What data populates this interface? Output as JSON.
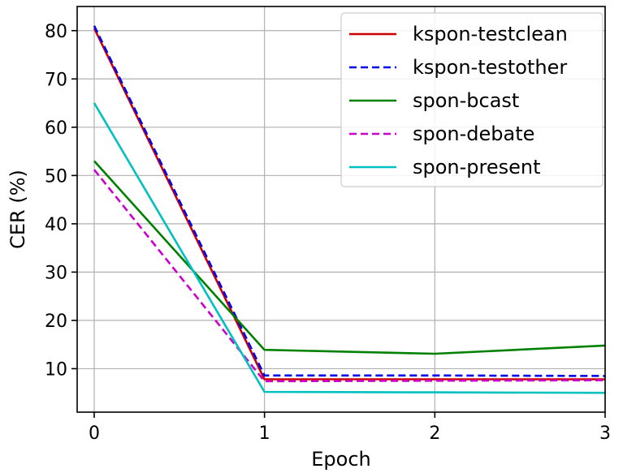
{
  "chart_data": {
    "type": "line",
    "xlabel": "Epoch",
    "ylabel": "CER (%)",
    "x": [
      0,
      1,
      2,
      3
    ],
    "xlim": [
      -0.1,
      3.0
    ],
    "ylim": [
      1,
      85
    ],
    "xticks": [
      "0",
      "1",
      "2",
      "3"
    ],
    "yticks": [
      "10",
      "20",
      "30",
      "40",
      "50",
      "60",
      "70",
      "80"
    ],
    "ytick_values": [
      10,
      20,
      30,
      40,
      50,
      60,
      70,
      80
    ],
    "grid": true,
    "legend_position": "top-right",
    "series": [
      {
        "name": "kspon-testclean",
        "values": [
          80.5,
          7.8,
          7.8,
          7.8
        ],
        "color": "#cc0000",
        "dash": "solid"
      },
      {
        "name": "kspon-testother",
        "values": [
          81.0,
          8.6,
          8.6,
          8.5
        ],
        "color": "#0000ee",
        "dash": "dashed"
      },
      {
        "name": "spon-bcast",
        "values": [
          53.0,
          13.9,
          13.1,
          14.8
        ],
        "color": "#008000",
        "dash": "solid"
      },
      {
        "name": "spon-debate",
        "values": [
          51.2,
          7.4,
          7.5,
          7.6
        ],
        "color": "#cc00cc",
        "dash": "dashed"
      },
      {
        "name": "spon-present",
        "values": [
          65.0,
          5.2,
          5.1,
          5.0
        ],
        "color": "#00c0c0",
        "dash": "solid"
      }
    ]
  }
}
